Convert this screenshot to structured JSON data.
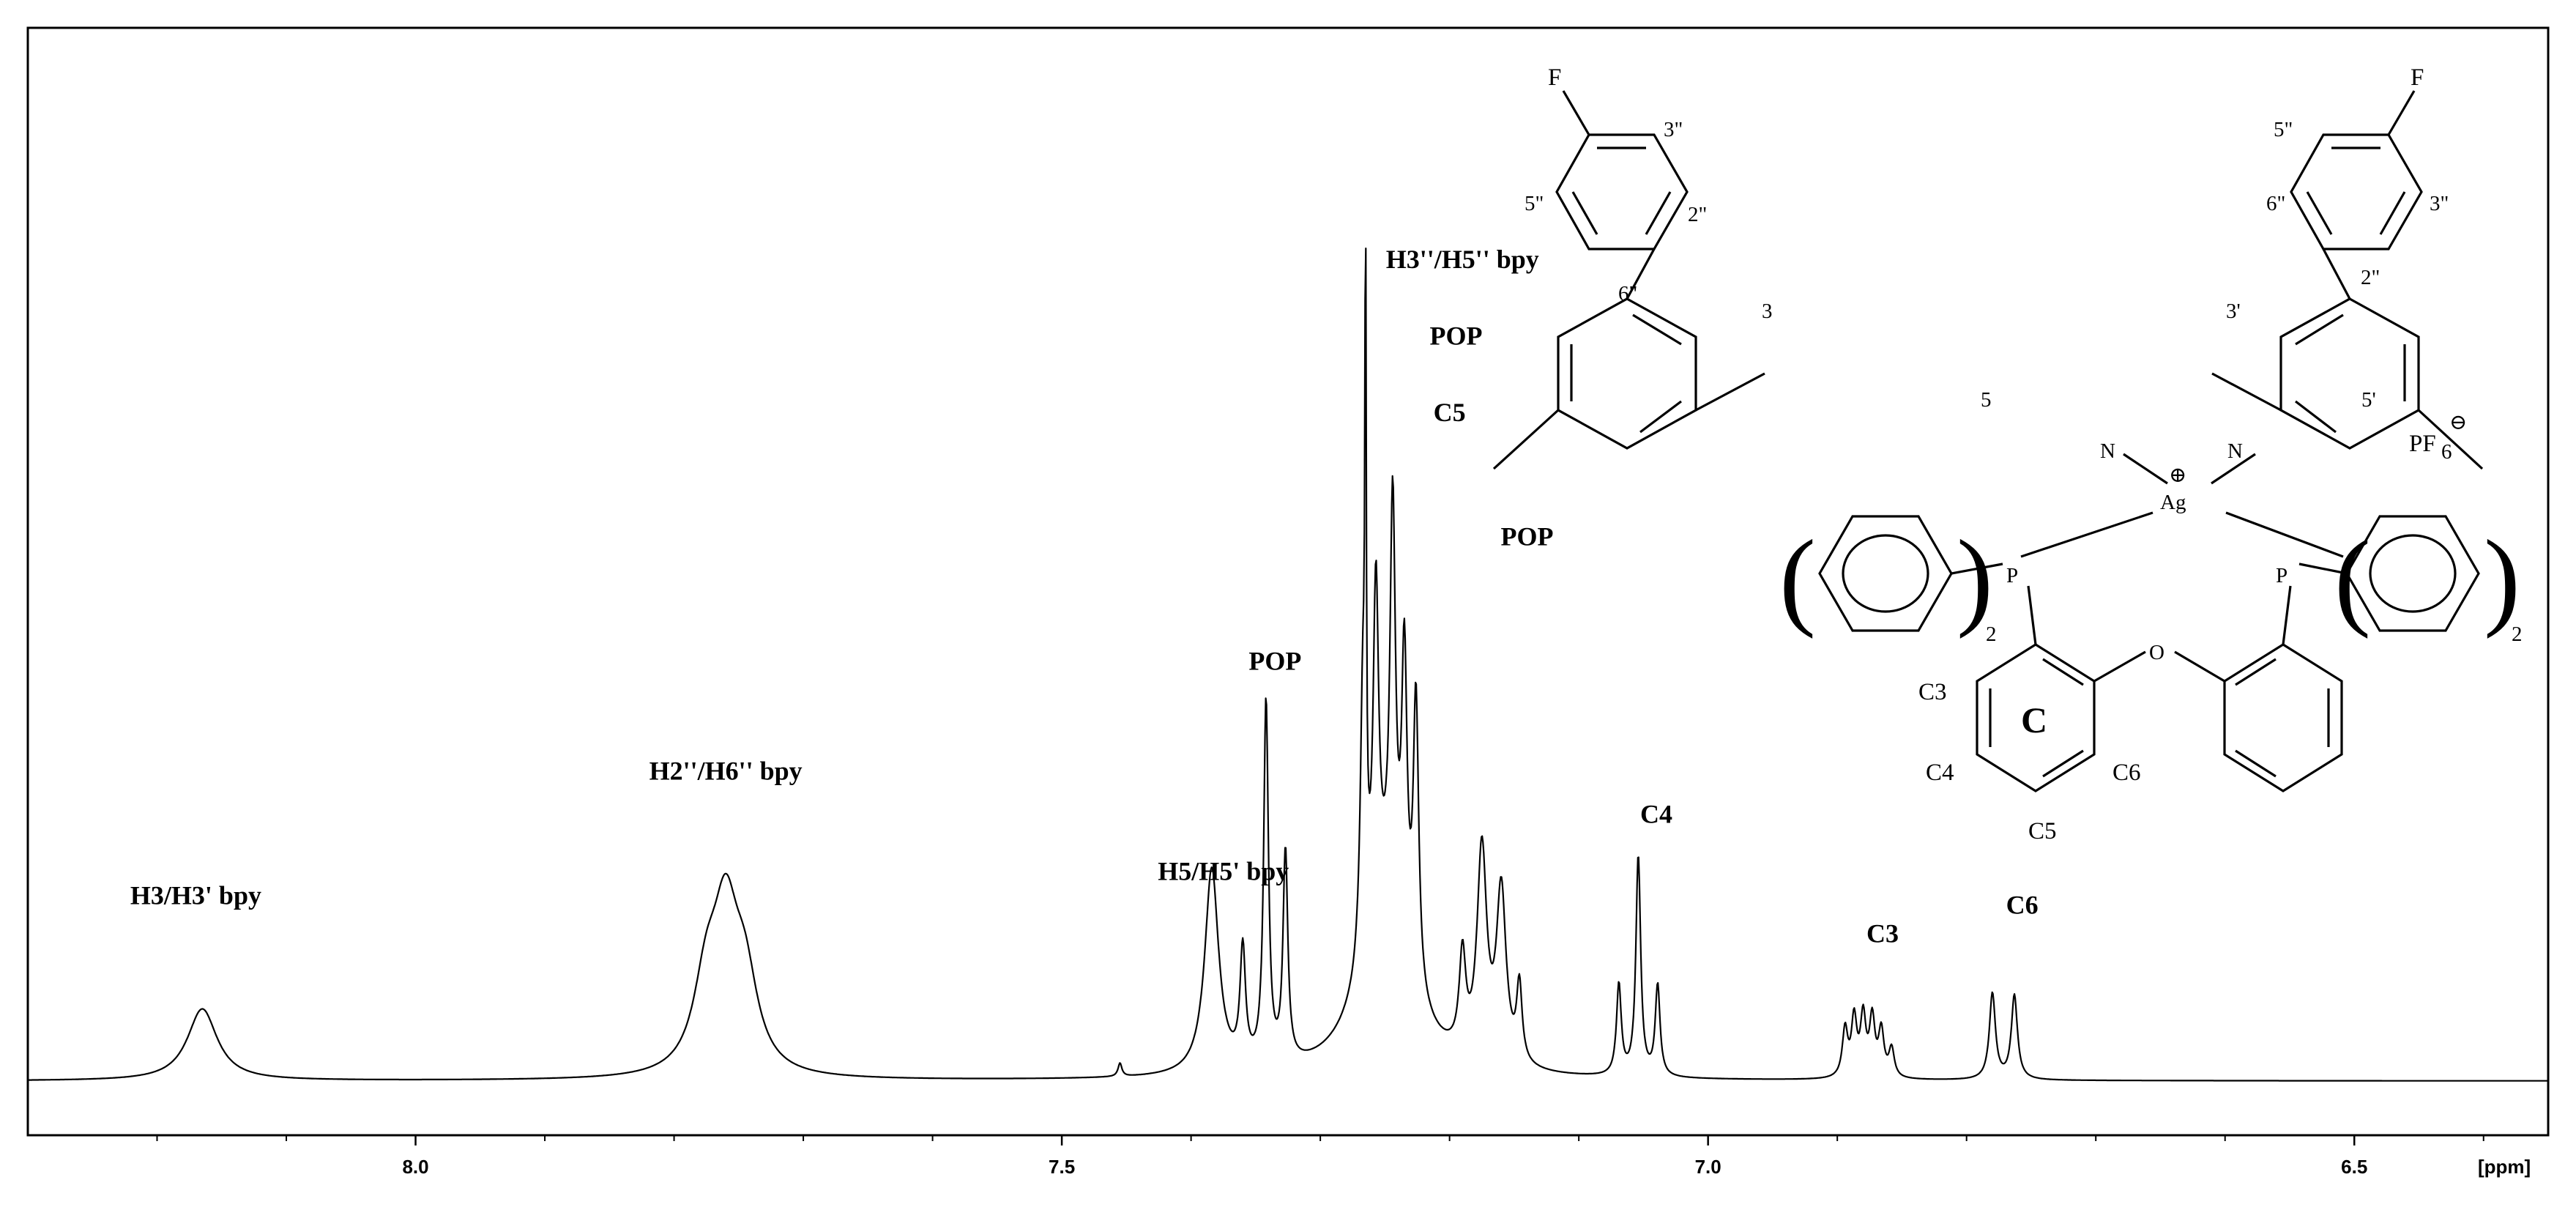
{
  "chart_data": {
    "type": "line",
    "xlim": [
      8.3,
      6.35
    ],
    "ylim": [
      -0.05,
      1.0
    ],
    "x_ticks": [
      {
        "value": 8.0,
        "label": "8.0"
      },
      {
        "value": 7.5,
        "label": "7.5"
      },
      {
        "value": 7.0,
        "label": "7.0"
      },
      {
        "value": 6.5,
        "label": "6.5"
      }
    ],
    "x_unit_label": "[ppm]",
    "grid": false,
    "peaks": [
      {
        "x": 8.165,
        "height": 0.075,
        "width": 0.014,
        "shape": "lorentz"
      },
      {
        "x": 7.775,
        "height": 0.085,
        "width": 0.012,
        "shape": "lorentz"
      },
      {
        "x": 7.76,
        "height": 0.15,
        "width": 0.012,
        "shape": "lorentz"
      },
      {
        "x": 7.745,
        "height": 0.085,
        "width": 0.012,
        "shape": "lorentz"
      },
      {
        "x": 7.455,
        "height": 0.014,
        "width": 0.0018,
        "shape": "lorentz"
      },
      {
        "x": 7.384,
        "height": 0.215,
        "width": 0.0065,
        "shape": "lorentz"
      },
      {
        "x": 7.36,
        "height": 0.12,
        "width": 0.0025,
        "shape": "lorentz"
      },
      {
        "x": 7.342,
        "height": 0.38,
        "width": 0.0022,
        "shape": "lorentz"
      },
      {
        "x": 7.327,
        "height": 0.22,
        "width": 0.0022,
        "shape": "lorentz"
      },
      {
        "x": 7.267,
        "height": 0.28,
        "width": 0.0025,
        "shape": "lorentz"
      },
      {
        "x": 7.257,
        "height": 0.34,
        "width": 0.0025,
        "shape": "lorentz"
      },
      {
        "x": 7.244,
        "height": 0.42,
        "width": 0.0025,
        "shape": "lorentz"
      },
      {
        "x": 7.235,
        "height": 0.3,
        "width": 0.0025,
        "shape": "lorentz"
      },
      {
        "x": 7.226,
        "height": 0.3,
        "width": 0.0025,
        "shape": "lorentz"
      },
      {
        "x": 7.25,
        "height": 0.18,
        "width": 0.022,
        "shape": "lorentz"
      },
      {
        "x": 7.175,
        "height": 0.22,
        "width": 0.0045,
        "shape": "lorentz"
      },
      {
        "x": 7.16,
        "height": 0.18,
        "width": 0.0045,
        "shape": "lorentz"
      },
      {
        "x": 7.19,
        "height": 0.1,
        "width": 0.003,
        "shape": "lorentz"
      },
      {
        "x": 7.146,
        "height": 0.08,
        "width": 0.0025,
        "shape": "lorentz"
      },
      {
        "x": 7.265,
        "height": 0.62,
        "width": 0.0006,
        "shape": "lorentz"
      },
      {
        "x": 7.069,
        "height": 0.095,
        "width": 0.0022,
        "shape": "lorentz"
      },
      {
        "x": 7.054,
        "height": 0.23,
        "width": 0.0022,
        "shape": "lorentz"
      },
      {
        "x": 7.039,
        "height": 0.095,
        "width": 0.0022,
        "shape": "lorentz"
      },
      {
        "x": 6.894,
        "height": 0.05,
        "width": 0.0025,
        "shape": "lorentz"
      },
      {
        "x": 6.887,
        "height": 0.06,
        "width": 0.0025,
        "shape": "lorentz"
      },
      {
        "x": 6.88,
        "height": 0.062,
        "width": 0.0025,
        "shape": "lorentz"
      },
      {
        "x": 6.873,
        "height": 0.06,
        "width": 0.0025,
        "shape": "lorentz"
      },
      {
        "x": 6.866,
        "height": 0.048,
        "width": 0.0025,
        "shape": "lorentz"
      },
      {
        "x": 6.858,
        "height": 0.03,
        "width": 0.0025,
        "shape": "lorentz"
      },
      {
        "x": 6.78,
        "height": 0.09,
        "width": 0.0028,
        "shape": "lorentz"
      },
      {
        "x": 6.763,
        "height": 0.088,
        "width": 0.0028,
        "shape": "lorentz"
      }
    ],
    "annotations": [
      {
        "text": "H3/H3' bpy",
        "x": 8.17,
        "y": 0.185
      },
      {
        "text": "H2''/H6'' bpy",
        "x": 7.76,
        "y": 0.315
      },
      {
        "text": "H5/H5' bpy",
        "x": 7.375,
        "y": 0.21
      },
      {
        "text": "POP",
        "x": 7.335,
        "y": 0.43
      },
      {
        "text": "H3''/H5'' bpy",
        "x": 7.19,
        "y": 0.85
      },
      {
        "text": "POP",
        "x": 7.195,
        "y": 0.77
      },
      {
        "text": "C5",
        "x": 7.2,
        "y": 0.69
      },
      {
        "text": "POP",
        "x": 7.14,
        "y": 0.56
      },
      {
        "text": "C4",
        "x": 7.04,
        "y": 0.27
      },
      {
        "text": "C3",
        "x": 6.865,
        "y": 0.145
      },
      {
        "text": "C6",
        "x": 6.757,
        "y": 0.175
      }
    ]
  },
  "structure": {
    "labels": {
      "f_left": "F",
      "f_right": "F",
      "p3pp_left": "3\"",
      "p5pp_left": "5\"",
      "p2pp_left": "2\"",
      "p6pp_left": "6\"",
      "p5pp_right": "5\"",
      "p6pp_right": "6\"",
      "p3pp_right": "3\"",
      "p2pp_right": "2\"",
      "p3": "3",
      "p3prime": "3'",
      "p5": "5",
      "p5prime": "5'",
      "n_left": "N",
      "n_right": "N",
      "ag": "Ag",
      "plus": "⊕",
      "pf": "PF",
      "pf_sub": "6",
      "pf_charge": "⊖",
      "p_left": "P",
      "p_right": "P",
      "oxygen": "O",
      "paren_left_open": "(",
      "paren_left_close": ")",
      "paren_right_open": "(",
      "paren_right_close": ")",
      "sub2_left": "2",
      "sub2_right": "2",
      "ring_c": "C",
      "c3": "C3",
      "c4": "C4",
      "c5": "C5",
      "c6": "C6"
    }
  }
}
